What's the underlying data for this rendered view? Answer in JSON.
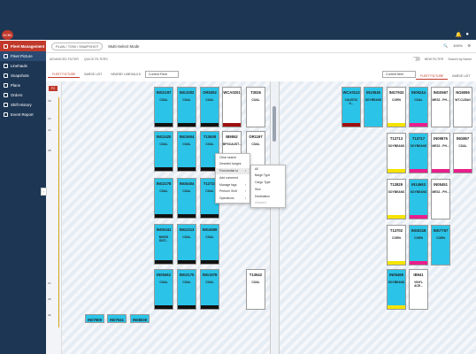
{
  "app": {
    "logo_text": "ACBL"
  },
  "header": {
    "icons": [
      "bell-icon",
      "user-icon"
    ]
  },
  "sidebar": {
    "header_label": "Fleet Management",
    "items": [
      {
        "label": "Fleet Picture"
      },
      {
        "label": "Linehauls"
      },
      {
        "label": "Snapshots"
      },
      {
        "label": "Plans"
      },
      {
        "label": "Orders"
      },
      {
        "label": "Shift History"
      },
      {
        "label": "Event Report"
      }
    ]
  },
  "toolbar": {
    "breadcrumb": "PLAN / TOW / SNAPSHOT",
    "mode": "Multi-Select Mode",
    "zoom": "100%"
  },
  "filterbar": {
    "advanced_filter": "ADVANCED FILTER",
    "quick_filters": "QUICK FILTERS",
    "new_filter": "NEW FILTER",
    "search_placeholder": "Search by Name"
  },
  "left_panel": {
    "tabs": [
      "FLEET PICTURE",
      "BARGE LIST",
      "NEARBY LINEHAULS"
    ],
    "select": "Current Fleet",
    "ruler_badge": "F2",
    "ruler_marks": [
      "1B",
      "1C",
      "2A",
      "2B",
      "2C",
      "2D",
      "2E"
    ]
  },
  "right_panel": {
    "select": "Current fleet",
    "tabs": [
      "FLEET PICTURE",
      "BARGE LIST"
    ]
  },
  "context_menu": {
    "items": [
      "Clear search",
      "Deselect barges",
      "Find similar to",
      "Add comment",
      "Manage tags",
      "Perform Shift",
      "Operations"
    ],
    "submenu": [
      "All",
      "Barge Type",
      "Cargo Type",
      "Size",
      "Destination",
      "Cleaned"
    ]
  },
  "barges_left": [
    {
      "id": "ING2197",
      "cargo": "COAL"
    },
    {
      "id": "ING1002",
      "cargo": "COAL"
    },
    {
      "id": "OR5352",
      "cargo": "COAL"
    },
    {
      "id": "WCA0201",
      "cargo": ""
    },
    {
      "id": "T3026",
      "cargo": "COAL"
    },
    {
      "id": "ING2420",
      "cargo": "COAL"
    },
    {
      "id": "ING3604",
      "cargo": "COAL"
    },
    {
      "id": "T13638",
      "cargo": "COAL"
    },
    {
      "id": "IB9552",
      "cargo": "BPXCAUST..."
    },
    {
      "id": "OR1197",
      "cargo": "COAL"
    },
    {
      "id": "ING2278",
      "cargo": "COAL"
    },
    {
      "id": "ING6404",
      "cargo": "COAL"
    },
    {
      "id": "T12724",
      "cargo": "COAL"
    },
    {
      "id": "ING0441",
      "cargo": "MIXED DIST..."
    },
    {
      "id": "ING2313",
      "cargo": "COAL"
    },
    {
      "id": "ING4659",
      "cargo": "COAL"
    },
    {
      "id": "IN05462",
      "cargo": "COAL"
    },
    {
      "id": "ING2170",
      "cargo": "COAL"
    },
    {
      "id": "ING1978",
      "cargo": "COAL"
    },
    {
      "id": "T13642",
      "cargo": "COAL"
    },
    {
      "id": "IN07909",
      "cargo": ""
    },
    {
      "id": "IN07041",
      "cargo": ""
    },
    {
      "id": "IN08038",
      "cargo": ""
    }
  ],
  "barges_right": [
    {
      "id": "WCA0113",
      "cargo": "CAUSTIC S..."
    },
    {
      "id": "IN10545",
      "cargo": "SOYBEANS"
    },
    {
      "id": "ING7933",
      "cargo": "CORN"
    },
    {
      "id": "IN09244",
      "cargo": "COAL"
    },
    {
      "id": "ING0667",
      "cargo": "MES2 - PH..."
    },
    {
      "id": "NG5065",
      "cargo": "WT-CLEAN"
    },
    {
      "id": "T13713",
      "cargo": "SOYBEANS"
    },
    {
      "id": "T13717",
      "cargo": "SOYBEANS"
    },
    {
      "id": "IN09676",
      "cargo": "MES2 - PH..."
    },
    {
      "id": "ING867",
      "cargo": "COAL"
    },
    {
      "id": "T13829",
      "cargo": "SOYBEANS"
    },
    {
      "id": "IN14663",
      "cargo": "SOYBEANS"
    },
    {
      "id": "IN05451",
      "cargo": "MES2 - PH..."
    },
    {
      "id": "T13702",
      "cargo": "CORN"
    },
    {
      "id": "ING6318",
      "cargo": "CORN"
    },
    {
      "id": "ING7767",
      "cargo": "CORN"
    },
    {
      "id": "IN05469",
      "cargo": "SOYBEANS"
    },
    {
      "id": "IB941",
      "cargo": "VINYL ACE..."
    }
  ]
}
